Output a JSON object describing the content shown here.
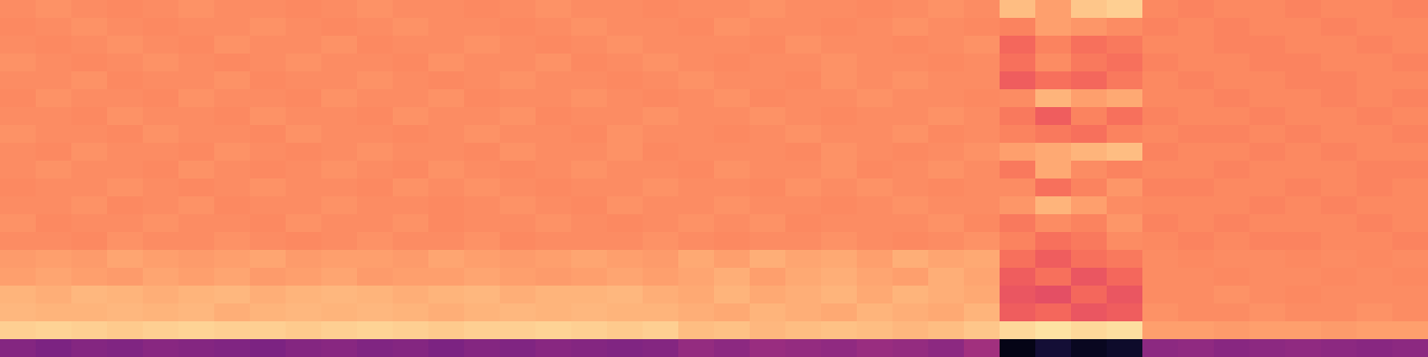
{
  "chart_data": {
    "type": "heatmap",
    "color": "magma",
    "tick_labels": false,
    "zlim": [
      0,
      1
    ],
    "cells": [
      [
        0.76,
        0.77,
        0.76,
        0.75,
        0.76,
        0.77,
        0.76,
        0.76,
        0.75,
        0.76,
        0.77,
        0.76,
        0.76,
        0.75,
        0.76,
        0.77,
        0.76,
        0.76,
        0.75,
        0.76,
        0.76,
        0.77,
        0.76,
        0.76,
        0.75,
        0.76,
        0.77,
        0.76,
        0.86,
        0.8,
        0.88,
        0.9,
        0.75,
        0.74,
        0.75,
        0.75,
        0.74,
        0.75,
        0.75,
        0.74
      ],
      [
        0.75,
        0.76,
        0.77,
        0.76,
        0.75,
        0.76,
        0.76,
        0.77,
        0.76,
        0.75,
        0.76,
        0.77,
        0.76,
        0.76,
        0.75,
        0.76,
        0.77,
        0.76,
        0.76,
        0.75,
        0.77,
        0.76,
        0.76,
        0.75,
        0.76,
        0.77,
        0.76,
        0.75,
        0.74,
        0.8,
        0.78,
        0.76,
        0.74,
        0.75,
        0.74,
        0.75,
        0.75,
        0.74,
        0.75,
        0.75
      ],
      [
        0.76,
        0.75,
        0.76,
        0.77,
        0.76,
        0.75,
        0.77,
        0.76,
        0.76,
        0.77,
        0.75,
        0.76,
        0.76,
        0.77,
        0.76,
        0.75,
        0.76,
        0.77,
        0.76,
        0.76,
        0.76,
        0.75,
        0.77,
        0.76,
        0.76,
        0.75,
        0.76,
        0.77,
        0.68,
        0.74,
        0.7,
        0.72,
        0.75,
        0.75,
        0.74,
        0.74,
        0.75,
        0.75,
        0.74,
        0.75
      ],
      [
        0.77,
        0.76,
        0.75,
        0.76,
        0.77,
        0.76,
        0.75,
        0.76,
        0.77,
        0.76,
        0.76,
        0.75,
        0.77,
        0.76,
        0.76,
        0.77,
        0.75,
        0.76,
        0.77,
        0.76,
        0.75,
        0.76,
        0.76,
        0.77,
        0.76,
        0.76,
        0.75,
        0.76,
        0.7,
        0.76,
        0.72,
        0.7,
        0.74,
        0.75,
        0.75,
        0.74,
        0.74,
        0.75,
        0.75,
        0.74
      ],
      [
        0.76,
        0.76,
        0.77,
        0.75,
        0.76,
        0.76,
        0.77,
        0.75,
        0.76,
        0.76,
        0.77,
        0.76,
        0.75,
        0.76,
        0.77,
        0.76,
        0.76,
        0.75,
        0.76,
        0.77,
        0.76,
        0.76,
        0.75,
        0.77,
        0.76,
        0.77,
        0.76,
        0.76,
        0.66,
        0.7,
        0.68,
        0.72,
        0.75,
        0.74,
        0.75,
        0.75,
        0.74,
        0.74,
        0.75,
        0.75
      ],
      [
        0.75,
        0.77,
        0.76,
        0.76,
        0.75,
        0.77,
        0.76,
        0.76,
        0.75,
        0.77,
        0.76,
        0.76,
        0.77,
        0.75,
        0.76,
        0.76,
        0.77,
        0.76,
        0.75,
        0.76,
        0.77,
        0.75,
        0.76,
        0.76,
        0.77,
        0.76,
        0.76,
        0.75,
        0.76,
        0.84,
        0.8,
        0.82,
        0.75,
        0.75,
        0.74,
        0.75,
        0.75,
        0.74,
        0.75,
        0.74
      ],
      [
        0.76,
        0.76,
        0.75,
        0.77,
        0.76,
        0.76,
        0.75,
        0.77,
        0.76,
        0.76,
        0.75,
        0.77,
        0.76,
        0.76,
        0.77,
        0.75,
        0.76,
        0.76,
        0.77,
        0.76,
        0.76,
        0.77,
        0.76,
        0.75,
        0.76,
        0.76,
        0.77,
        0.76,
        0.72,
        0.66,
        0.74,
        0.7,
        0.74,
        0.75,
        0.75,
        0.74,
        0.75,
        0.75,
        0.74,
        0.75
      ],
      [
        0.77,
        0.76,
        0.76,
        0.75,
        0.77,
        0.76,
        0.76,
        0.75,
        0.77,
        0.76,
        0.76,
        0.75,
        0.76,
        0.77,
        0.76,
        0.76,
        0.75,
        0.77,
        0.76,
        0.76,
        0.75,
        0.76,
        0.77,
        0.76,
        0.76,
        0.77,
        0.75,
        0.76,
        0.74,
        0.72,
        0.7,
        0.74,
        0.75,
        0.74,
        0.74,
        0.75,
        0.74,
        0.75,
        0.75,
        0.74
      ],
      [
        0.76,
        0.75,
        0.77,
        0.76,
        0.76,
        0.75,
        0.77,
        0.76,
        0.75,
        0.76,
        0.77,
        0.76,
        0.76,
        0.75,
        0.77,
        0.76,
        0.76,
        0.77,
        0.75,
        0.76,
        0.76,
        0.76,
        0.75,
        0.77,
        0.76,
        0.75,
        0.76,
        0.77,
        0.8,
        0.82,
        0.84,
        0.86,
        0.74,
        0.75,
        0.75,
        0.74,
        0.75,
        0.74,
        0.75,
        0.75
      ],
      [
        0.76,
        0.77,
        0.76,
        0.76,
        0.75,
        0.77,
        0.76,
        0.75,
        0.76,
        0.77,
        0.76,
        0.75,
        0.77,
        0.76,
        0.75,
        0.76,
        0.77,
        0.76,
        0.76,
        0.75,
        0.77,
        0.76,
        0.76,
        0.77,
        0.75,
        0.76,
        0.77,
        0.76,
        0.72,
        0.82,
        0.76,
        0.74,
        0.75,
        0.75,
        0.74,
        0.75,
        0.75,
        0.75,
        0.74,
        0.74
      ],
      [
        0.75,
        0.76,
        0.76,
        0.77,
        0.76,
        0.75,
        0.76,
        0.77,
        0.76,
        0.76,
        0.75,
        0.77,
        0.76,
        0.77,
        0.76,
        0.75,
        0.76,
        0.76,
        0.77,
        0.76,
        0.76,
        0.75,
        0.77,
        0.76,
        0.77,
        0.76,
        0.75,
        0.76,
        0.76,
        0.7,
        0.74,
        0.78,
        0.74,
        0.74,
        0.75,
        0.75,
        0.74,
        0.75,
        0.74,
        0.75
      ],
      [
        0.76,
        0.76,
        0.77,
        0.75,
        0.76,
        0.77,
        0.75,
        0.76,
        0.76,
        0.77,
        0.76,
        0.76,
        0.75,
        0.76,
        0.77,
        0.76,
        0.75,
        0.77,
        0.76,
        0.76,
        0.77,
        0.76,
        0.76,
        0.75,
        0.76,
        0.77,
        0.76,
        0.76,
        0.78,
        0.84,
        0.8,
        0.76,
        0.75,
        0.75,
        0.75,
        0.74,
        0.75,
        0.74,
        0.75,
        0.75
      ],
      [
        0.77,
        0.75,
        0.76,
        0.76,
        0.77,
        0.76,
        0.76,
        0.75,
        0.77,
        0.76,
        0.76,
        0.77,
        0.75,
        0.76,
        0.76,
        0.77,
        0.76,
        0.75,
        0.76,
        0.77,
        0.76,
        0.77,
        0.75,
        0.76,
        0.76,
        0.76,
        0.77,
        0.75,
        0.72,
        0.76,
        0.74,
        0.78,
        0.74,
        0.75,
        0.74,
        0.75,
        0.75,
        0.75,
        0.74,
        0.75
      ],
      [
        0.76,
        0.76,
        0.75,
        0.77,
        0.76,
        0.76,
        0.77,
        0.76,
        0.75,
        0.76,
        0.77,
        0.76,
        0.76,
        0.77,
        0.75,
        0.76,
        0.76,
        0.76,
        0.77,
        0.76,
        0.75,
        0.76,
        0.76,
        0.77,
        0.76,
        0.75,
        0.76,
        0.77,
        0.74,
        0.7,
        0.72,
        0.76,
        0.75,
        0.74,
        0.75,
        0.74,
        0.74,
        0.75,
        0.75,
        0.74
      ],
      [
        0.79,
        0.8,
        0.79,
        0.81,
        0.8,
        0.79,
        0.8,
        0.81,
        0.79,
        0.8,
        0.8,
        0.79,
        0.81,
        0.8,
        0.79,
        0.8,
        0.81,
        0.8,
        0.79,
        0.82,
        0.8,
        0.83,
        0.81,
        0.82,
        0.8,
        0.83,
        0.81,
        0.82,
        0.7,
        0.66,
        0.7,
        0.72,
        0.76,
        0.75,
        0.76,
        0.76,
        0.75,
        0.76,
        0.75,
        0.76
      ],
      [
        0.8,
        0.81,
        0.8,
        0.79,
        0.81,
        0.8,
        0.81,
        0.79,
        0.8,
        0.81,
        0.79,
        0.8,
        0.8,
        0.81,
        0.8,
        0.79,
        0.8,
        0.81,
        0.8,
        0.81,
        0.83,
        0.8,
        0.82,
        0.83,
        0.81,
        0.8,
        0.83,
        0.81,
        0.66,
        0.7,
        0.64,
        0.68,
        0.76,
        0.76,
        0.75,
        0.76,
        0.76,
        0.75,
        0.76,
        0.75
      ],
      [
        0.84,
        0.83,
        0.85,
        0.84,
        0.83,
        0.84,
        0.85,
        0.83,
        0.84,
        0.85,
        0.84,
        0.83,
        0.84,
        0.85,
        0.83,
        0.84,
        0.84,
        0.85,
        0.83,
        0.82,
        0.84,
        0.82,
        0.83,
        0.84,
        0.82,
        0.84,
        0.83,
        0.82,
        0.64,
        0.62,
        0.68,
        0.64,
        0.76,
        0.76,
        0.77,
        0.76,
        0.75,
        0.76,
        0.76,
        0.76
      ],
      [
        0.85,
        0.84,
        0.84,
        0.85,
        0.84,
        0.85,
        0.83,
        0.84,
        0.85,
        0.84,
        0.85,
        0.84,
        0.83,
        0.84,
        0.85,
        0.84,
        0.85,
        0.84,
        0.84,
        0.83,
        0.82,
        0.84,
        0.83,
        0.82,
        0.84,
        0.83,
        0.82,
        0.84,
        0.66,
        0.68,
        0.64,
        0.66,
        0.77,
        0.76,
        0.76,
        0.77,
        0.76,
        0.76,
        0.77,
        0.76
      ],
      [
        0.9,
        0.91,
        0.9,
        0.89,
        0.9,
        0.91,
        0.9,
        0.9,
        0.89,
        0.9,
        0.91,
        0.9,
        0.89,
        0.9,
        0.9,
        0.91,
        0.9,
        0.89,
        0.9,
        0.86,
        0.87,
        0.85,
        0.86,
        0.87,
        0.86,
        0.85,
        0.86,
        0.88,
        0.92,
        0.94,
        0.92,
        0.93,
        0.8,
        0.8,
        0.79,
        0.8,
        0.8,
        0.79,
        0.8,
        0.8
      ],
      [
        0.38,
        0.36,
        0.38,
        0.37,
        0.39,
        0.38,
        0.37,
        0.36,
        0.38,
        0.39,
        0.37,
        0.38,
        0.36,
        0.38,
        0.37,
        0.39,
        0.38,
        0.37,
        0.38,
        0.42,
        0.4,
        0.43,
        0.42,
        0.41,
        0.43,
        0.42,
        0.4,
        0.45,
        0.04,
        0.1,
        0.06,
        0.08,
        0.4,
        0.41,
        0.39,
        0.4,
        0.41,
        0.4,
        0.39,
        0.4
      ]
    ]
  }
}
